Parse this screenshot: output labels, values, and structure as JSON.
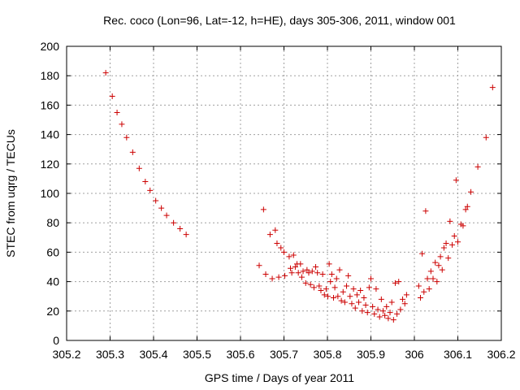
{
  "chart_data": {
    "type": "scatter",
    "title": "Rec. coco (Lon=96, Lat=-12, h=HE), days 305-306, 2011, window 001",
    "xlabel": "GPS time / Days of year 2011",
    "ylabel": "STEC from uqrg / TECUs",
    "xlim": [
      305.2,
      306.2
    ],
    "ylim": [
      0,
      200
    ],
    "xticks": [
      "305.2",
      "305.3",
      "305.4",
      "305.5",
      "305.6",
      "305.7",
      "305.8",
      "305.9",
      "306",
      "306.1",
      "306.2"
    ],
    "yticks": [
      "0",
      "20",
      "40",
      "60",
      "80",
      "100",
      "120",
      "140",
      "160",
      "180",
      "200"
    ],
    "grid": true,
    "marker": "+",
    "color": "#cc0000",
    "series": [
      {
        "points": [
          [
            305.29,
            182
          ],
          [
            305.305,
            166
          ],
          [
            305.316,
            155
          ],
          [
            305.327,
            147
          ],
          [
            305.338,
            138
          ],
          [
            305.352,
            128
          ],
          [
            305.367,
            117
          ],
          [
            305.381,
            108
          ],
          [
            305.392,
            102
          ],
          [
            305.405,
            95
          ],
          [
            305.418,
            90
          ],
          [
            305.43,
            85
          ],
          [
            305.446,
            80
          ],
          [
            305.461,
            76
          ],
          [
            305.475,
            72
          ],
          [
            305.643,
            51
          ],
          [
            305.653,
            89
          ],
          [
            305.658,
            45
          ],
          [
            305.668,
            72
          ],
          [
            305.673,
            42
          ],
          [
            305.68,
            75
          ],
          [
            305.684,
            66
          ],
          [
            305.688,
            43
          ],
          [
            305.693,
            63
          ],
          [
            305.7,
            60
          ],
          [
            305.702,
            44
          ],
          [
            305.712,
            57
          ],
          [
            305.715,
            49
          ],
          [
            305.718,
            46
          ],
          [
            305.722,
            58
          ],
          [
            305.726,
            50
          ],
          [
            305.73,
            52
          ],
          [
            305.733,
            46
          ],
          [
            305.738,
            52
          ],
          [
            305.741,
            43
          ],
          [
            305.744,
            47
          ],
          [
            305.75,
            39
          ],
          [
            305.753,
            48
          ],
          [
            305.757,
            46
          ],
          [
            305.761,
            38
          ],
          [
            305.765,
            47
          ],
          [
            305.769,
            36
          ],
          [
            305.773,
            50
          ],
          [
            305.777,
            46
          ],
          [
            305.781,
            37
          ],
          [
            305.785,
            34
          ],
          [
            305.789,
            45
          ],
          [
            305.793,
            31
          ],
          [
            305.797,
            35
          ],
          [
            305.801,
            30
          ],
          [
            305.804,
            52
          ],
          [
            305.807,
            40
          ],
          [
            305.81,
            45
          ],
          [
            305.814,
            29
          ],
          [
            305.817,
            36
          ],
          [
            305.821,
            42
          ],
          [
            305.824,
            30
          ],
          [
            305.828,
            48
          ],
          [
            305.832,
            27
          ],
          [
            305.836,
            33
          ],
          [
            305.84,
            26
          ],
          [
            305.844,
            37
          ],
          [
            305.848,
            44
          ],
          [
            305.852,
            30
          ],
          [
            305.856,
            25
          ],
          [
            305.86,
            35
          ],
          [
            305.864,
            22
          ],
          [
            305.868,
            31
          ],
          [
            305.872,
            26
          ],
          [
            305.876,
            34
          ],
          [
            305.88,
            20
          ],
          [
            305.884,
            29
          ],
          [
            305.888,
            24
          ],
          [
            305.892,
            19
          ],
          [
            305.896,
            36
          ],
          [
            305.9,
            42
          ],
          [
            305.904,
            23
          ],
          [
            305.908,
            18
          ],
          [
            305.912,
            35
          ],
          [
            305.916,
            21
          ],
          [
            305.92,
            16
          ],
          [
            305.924,
            28
          ],
          [
            305.928,
            20
          ],
          [
            305.932,
            17
          ],
          [
            305.936,
            23
          ],
          [
            305.94,
            15
          ],
          [
            305.944,
            19
          ],
          [
            305.948,
            26
          ],
          [
            305.952,
            14
          ],
          [
            305.956,
            39
          ],
          [
            305.96,
            18
          ],
          [
            305.964,
            40
          ],
          [
            305.968,
            21
          ],
          [
            305.973,
            28
          ],
          [
            305.978,
            25
          ],
          [
            305.982,
            31
          ],
          [
            306.01,
            37
          ],
          [
            306.014,
            29
          ],
          [
            306.018,
            59
          ],
          [
            306.022,
            33
          ],
          [
            306.026,
            88
          ],
          [
            306.03,
            42
          ],
          [
            306.034,
            35
          ],
          [
            306.038,
            47
          ],
          [
            306.043,
            42
          ],
          [
            306.048,
            53
          ],
          [
            306.052,
            40
          ],
          [
            306.056,
            51
          ],
          [
            306.06,
            57
          ],
          [
            306.064,
            48
          ],
          [
            306.068,
            63
          ],
          [
            306.073,
            66
          ],
          [
            306.078,
            56
          ],
          [
            306.082,
            81
          ],
          [
            306.087,
            65
          ],
          [
            306.092,
            71
          ],
          [
            306.096,
            109
          ],
          [
            306.1,
            67
          ],
          [
            306.107,
            79
          ],
          [
            306.112,
            78
          ],
          [
            306.118,
            89
          ],
          [
            306.122,
            91
          ],
          [
            306.13,
            101
          ],
          [
            306.146,
            118
          ],
          [
            306.165,
            138
          ],
          [
            306.18,
            172
          ]
        ]
      }
    ]
  }
}
